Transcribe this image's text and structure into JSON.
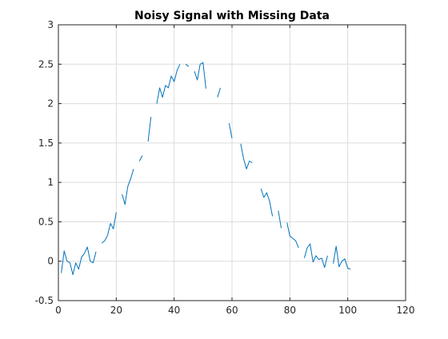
{
  "chart_data": {
    "type": "line",
    "title": "Noisy Signal with Missing Data",
    "xlabel": "",
    "ylabel": "",
    "xlim": [
      0,
      120
    ],
    "ylim": [
      -0.5,
      3
    ],
    "xticks": [
      0,
      20,
      40,
      60,
      80,
      100,
      120
    ],
    "xtick_labels": [
      "0",
      "20",
      "40",
      "60",
      "80",
      "100",
      "120"
    ],
    "yticks": [
      -0.5,
      0,
      0.5,
      1,
      1.5,
      2,
      2.5,
      3
    ],
    "ytick_labels": [
      "-0.5",
      "0",
      "0.5",
      "1",
      "1.5",
      "2",
      "2.5",
      "3"
    ],
    "grid": true,
    "line_color": "#0072BD",
    "series": [
      {
        "x": [
          1,
          2,
          3,
          4,
          5,
          6,
          7,
          8,
          9,
          10,
          11,
          12,
          13,
          14,
          15,
          16,
          17,
          18,
          19,
          20,
          21,
          22,
          23,
          24,
          25,
          26,
          27,
          28,
          29,
          30,
          31,
          32,
          33,
          34,
          35,
          36,
          37,
          38,
          39,
          40,
          41,
          42,
          43,
          44,
          45,
          46,
          47,
          48,
          49,
          50,
          51,
          52,
          53,
          54,
          55,
          56,
          57,
          58,
          59,
          60,
          61,
          62,
          63,
          64,
          65,
          66,
          67,
          68,
          69,
          70,
          71,
          72,
          73,
          74,
          75,
          76,
          77,
          78,
          79,
          80,
          81,
          82,
          83,
          84,
          85,
          86,
          87,
          88,
          89,
          90,
          91,
          92,
          93,
          94,
          95,
          96,
          97,
          98,
          99,
          100,
          101
        ],
        "y": [
          -0.15,
          0.13,
          0.0,
          -0.02,
          -0.17,
          -0.02,
          -0.1,
          0.05,
          0.1,
          0.18,
          0.0,
          -0.02,
          0.12,
          null,
          0.23,
          0.26,
          0.33,
          0.48,
          0.41,
          0.62,
          null,
          0.85,
          0.72,
          0.95,
          1.05,
          1.17,
          null,
          1.27,
          1.34,
          null,
          1.52,
          1.83,
          null,
          2.0,
          2.2,
          2.08,
          2.23,
          2.2,
          2.35,
          2.28,
          2.42,
          2.5,
          null,
          2.5,
          2.47,
          null,
          2.41,
          2.3,
          2.5,
          2.52,
          2.19,
          null,
          null,
          null,
          2.08,
          2.2,
          null,
          null,
          1.75,
          1.56,
          null,
          null,
          1.49,
          1.3,
          1.17,
          1.27,
          1.25,
          null,
          null,
          0.92,
          0.81,
          0.87,
          0.76,
          0.57,
          null,
          0.64,
          0.42,
          null,
          0.49,
          0.32,
          0.29,
          0.26,
          0.17,
          null,
          0.04,
          0.17,
          0.22,
          -0.01,
          0.07,
          0.02,
          0.04,
          -0.08,
          0.07,
          null,
          -0.03,
          0.19,
          -0.07,
          0.0,
          0.03,
          -0.09,
          -0.1
        ]
      }
    ]
  }
}
